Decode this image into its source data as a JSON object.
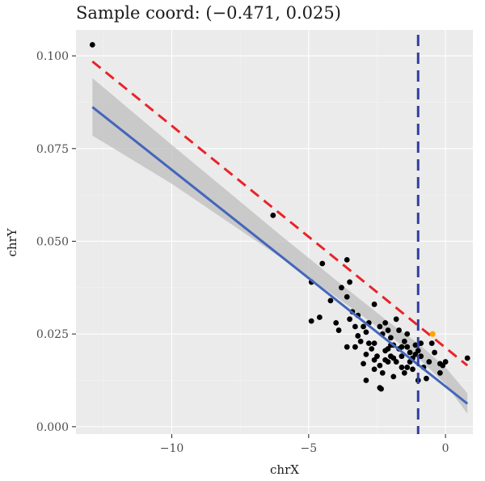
{
  "colors": {
    "panel_bg": "#ebebeb",
    "grid_major": "#ffffff",
    "grid_minor": "#f5f5f5",
    "points": "#000000",
    "highlight_point": "#ffa500",
    "fit_line": "#4466bb",
    "confidence_band": "#bdbdbd",
    "reference_line": "#e8242a",
    "vline": "#2f3fa0"
  },
  "chart_data": {
    "type": "scatter",
    "title": "Sample coord: (−0.471, 0.025)",
    "xlabel": "chrX",
    "ylabel": "chrY",
    "xlim": [
      -13.5,
      1.0
    ],
    "ylim": [
      -0.002,
      0.107
    ],
    "x_ticks": [
      -10,
      -5,
      0
    ],
    "x_tick_labels": [
      "−10",
      "−5",
      "0"
    ],
    "y_ticks": [
      0.0,
      0.025,
      0.05,
      0.075,
      0.1
    ],
    "y_tick_labels": [
      "0.000",
      "0.025",
      "0.050",
      "0.075",
      "0.100"
    ],
    "grid": true,
    "points": [
      [
        -12.9,
        0.103
      ],
      [
        -6.3,
        0.057
      ],
      [
        -4.5,
        0.044
      ],
      [
        -3.6,
        0.045
      ],
      [
        -3.5,
        0.039
      ],
      [
        -3.8,
        0.0375
      ],
      [
        -4.9,
        0.039
      ],
      [
        -4.2,
        0.034
      ],
      [
        -3.4,
        0.031
      ],
      [
        -3.2,
        0.03
      ],
      [
        -3.6,
        0.035
      ],
      [
        -4.6,
        0.0295
      ],
      [
        -4.9,
        0.0285
      ],
      [
        -4.0,
        0.028
      ],
      [
        -3.9,
        0.026
      ],
      [
        -3.3,
        0.027
      ],
      [
        -3.5,
        0.029
      ],
      [
        -3.6,
        0.0215
      ],
      [
        -3.2,
        0.0245
      ],
      [
        -3.0,
        0.027
      ],
      [
        -2.9,
        0.0255
      ],
      [
        -3.1,
        0.023
      ],
      [
        -2.8,
        0.028
      ],
      [
        -2.6,
        0.033
      ],
      [
        -2.6,
        0.0225
      ],
      [
        -2.4,
        0.027
      ],
      [
        -2.3,
        0.025
      ],
      [
        -2.2,
        0.028
      ],
      [
        -2.1,
        0.021
      ],
      [
        -2.0,
        0.024
      ],
      [
        -1.9,
        0.022
      ],
      [
        -1.8,
        0.029
      ],
      [
        -1.7,
        0.026
      ],
      [
        -1.7,
        0.021
      ],
      [
        -1.6,
        0.019
      ],
      [
        -1.5,
        0.023
      ],
      [
        -1.4,
        0.0215
      ],
      [
        -1.3,
        0.02
      ],
      [
        -1.2,
        0.0185
      ],
      [
        -1.1,
        0.022
      ],
      [
        -1.0,
        0.0205
      ],
      [
        -0.9,
        0.019
      ],
      [
        -1.6,
        0.016
      ],
      [
        -1.8,
        0.0175
      ],
      [
        -2.0,
        0.019
      ],
      [
        -2.2,
        0.018
      ],
      [
        -2.4,
        0.0165
      ],
      [
        -2.5,
        0.019
      ],
      [
        -2.7,
        0.021
      ],
      [
        -2.9,
        0.0195
      ],
      [
        -3.0,
        0.017
      ],
      [
        -2.6,
        0.0155
      ],
      [
        -2.3,
        0.0145
      ],
      [
        -1.9,
        0.0135
      ],
      [
        -1.5,
        0.0145
      ],
      [
        -1.2,
        0.0155
      ],
      [
        -0.8,
        0.016
      ],
      [
        -0.6,
        0.0175
      ],
      [
        -0.5,
        0.0225
      ],
      [
        -0.4,
        0.02
      ],
      [
        -0.2,
        0.017
      ],
      [
        -0.1,
        0.0165
      ],
      [
        0.0,
        0.0175
      ],
      [
        -0.2,
        0.0145
      ],
      [
        0.8,
        0.0185
      ],
      [
        -0.7,
        0.013
      ],
      [
        -1.0,
        0.0125
      ],
      [
        -1.4,
        0.016
      ],
      [
        -2.9,
        0.0125
      ],
      [
        -2.4,
        0.0105
      ],
      [
        -2.35,
        0.0102
      ],
      [
        -2.1,
        0.0175
      ],
      [
        -1.6,
        0.0215
      ],
      [
        -2.0,
        0.022
      ],
      [
        -2.8,
        0.0225
      ],
      [
        -3.3,
        0.0215
      ],
      [
        -1.3,
        0.0175
      ],
      [
        -1.1,
        0.0195
      ],
      [
        -0.9,
        0.0225
      ],
      [
        -1.9,
        0.0185
      ],
      [
        -2.2,
        0.0205
      ],
      [
        -2.6,
        0.018
      ],
      [
        -1.4,
        0.025
      ],
      [
        -2.1,
        0.026
      ]
    ],
    "highlight_point": [
      -0.471,
      0.025
    ],
    "fit_line": {
      "x": [
        -12.9,
        0.8
      ],
      "y": [
        0.0862,
        0.0062
      ]
    },
    "confidence_band": {
      "x": [
        -12.9,
        -10,
        -6,
        -4,
        -2,
        -1,
        0,
        0.8
      ],
      "lower": [
        0.0785,
        0.0655,
        0.0455,
        0.035,
        0.0243,
        0.0185,
        0.0115,
        0.0035
      ],
      "upper": [
        0.094,
        0.076,
        0.0515,
        0.0395,
        0.0278,
        0.0225,
        0.016,
        0.009
      ]
    },
    "reference_line": {
      "x": [
        -12.9,
        0.8
      ],
      "y": [
        0.0985,
        0.0165
      ]
    },
    "vline_x": -1.0
  }
}
